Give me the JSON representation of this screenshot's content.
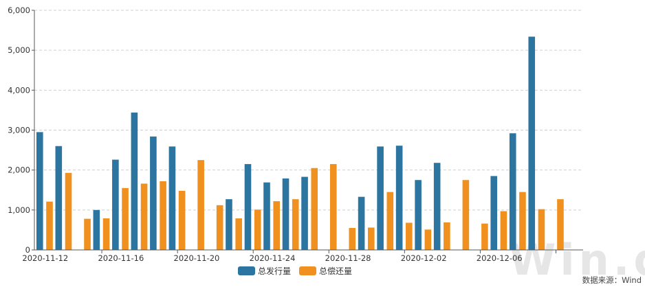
{
  "chart_data": {
    "type": "bar",
    "title": "",
    "xlabel": "",
    "ylabel": "",
    "ylim": [
      0,
      6000
    ],
    "y_ticks": [
      "0",
      "1,000",
      "2,000",
      "3,000",
      "4,000",
      "5,000",
      "6,000"
    ],
    "x_tick_labels": [
      "2020-11-12",
      "2020-11-16",
      "2020-11-20",
      "2020-11-24",
      "2020-11-28",
      "2020-12-02",
      "2020-12-06"
    ],
    "categories": [
      "2020-11-12",
      "2020-11-13",
      "2020-11-14",
      "2020-11-15",
      "2020-11-16",
      "2020-11-17",
      "2020-11-18",
      "2020-11-19",
      "2020-11-20",
      "2020-11-21",
      "2020-11-22",
      "2020-11-23",
      "2020-11-24",
      "2020-11-25",
      "2020-11-26",
      "2020-11-27",
      "2020-11-28",
      "2020-11-29",
      "2020-11-30",
      "2020-12-01",
      "2020-12-02",
      "2020-12-03",
      "2020-12-04",
      "2020-12-05",
      "2020-12-06",
      "2020-12-07",
      "2020-12-08",
      "2020-12-09",
      "2020-12-10"
    ],
    "series": [
      {
        "name": "总发行量",
        "color": "#2b75a0",
        "values": [
          2950,
          2600,
          0,
          1000,
          2260,
          3440,
          2840,
          2590,
          0,
          0,
          1270,
          2150,
          1690,
          1790,
          1830,
          0,
          0,
          1330,
          2590,
          2610,
          1750,
          2180,
          0,
          0,
          1850,
          2920,
          5340,
          0,
          0
        ]
      },
      {
        "name": "总偿还量",
        "color": "#f0901e",
        "values": [
          1210,
          1930,
          780,
          790,
          1550,
          1660,
          1720,
          1480,
          2250,
          1120,
          790,
          1010,
          1220,
          1270,
          2050,
          2150,
          550,
          560,
          1450,
          680,
          510,
          690,
          1750,
          660,
          970,
          1450,
          1020,
          1270,
          0
        ]
      }
    ],
    "grid": true,
    "legend_position": "bottom-center"
  },
  "watermark": "Win.d",
  "source": "数据来源：Wind"
}
